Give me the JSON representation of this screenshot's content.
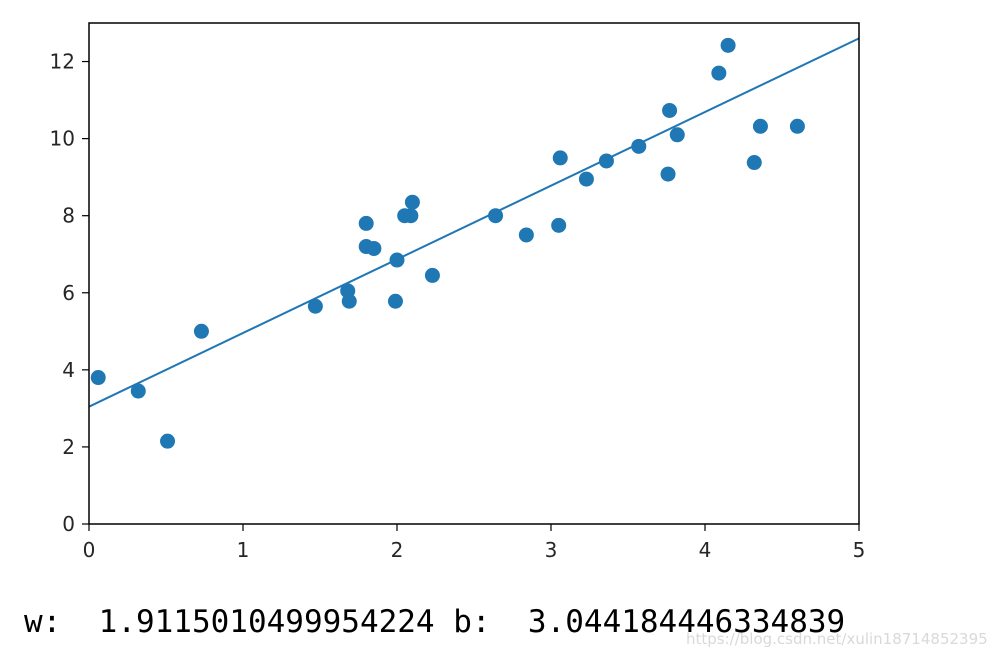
{
  "chart_data": {
    "type": "scatter",
    "title": "",
    "xlabel": "",
    "ylabel": "",
    "xlim": [
      0,
      5
    ],
    "ylim": [
      0,
      13
    ],
    "xticks": [
      0,
      1,
      2,
      3,
      4,
      5
    ],
    "yticks": [
      0,
      2,
      4,
      6,
      8,
      10,
      12
    ],
    "grid": false,
    "colors": {
      "points": "#1f77b4",
      "line": "#1f77b4"
    },
    "points": [
      [
        0.06,
        3.8
      ],
      [
        0.32,
        3.45
      ],
      [
        0.51,
        2.15
      ],
      [
        0.73,
        5.0
      ],
      [
        1.47,
        5.65
      ],
      [
        1.68,
        6.05
      ],
      [
        1.69,
        5.78
      ],
      [
        1.8,
        7.8
      ],
      [
        1.8,
        7.2
      ],
      [
        1.85,
        7.15
      ],
      [
        1.99,
        5.78
      ],
      [
        2.0,
        6.85
      ],
      [
        2.05,
        8.0
      ],
      [
        2.09,
        8.0
      ],
      [
        2.1,
        8.35
      ],
      [
        2.23,
        6.45
      ],
      [
        2.64,
        8.0
      ],
      [
        2.84,
        7.5
      ],
      [
        3.05,
        7.75
      ],
      [
        3.06,
        9.5
      ],
      [
        3.23,
        8.95
      ],
      [
        3.36,
        9.42
      ],
      [
        3.57,
        9.8
      ],
      [
        3.76,
        9.08
      ],
      [
        3.77,
        10.73
      ],
      [
        3.82,
        10.1
      ],
      [
        4.09,
        11.7
      ],
      [
        4.15,
        12.42
      ],
      [
        4.32,
        9.38
      ],
      [
        4.36,
        10.32
      ],
      [
        4.6,
        10.32
      ]
    ],
    "fit_line": {
      "slope": 1.9115010499954224,
      "intercept": 3.044184446334839
    }
  },
  "output": {
    "text": "w:  1.9115010499954224 b:  3.044184446334839"
  },
  "watermark": {
    "text": "https://blog.csdn.net/xulin18714852395"
  }
}
